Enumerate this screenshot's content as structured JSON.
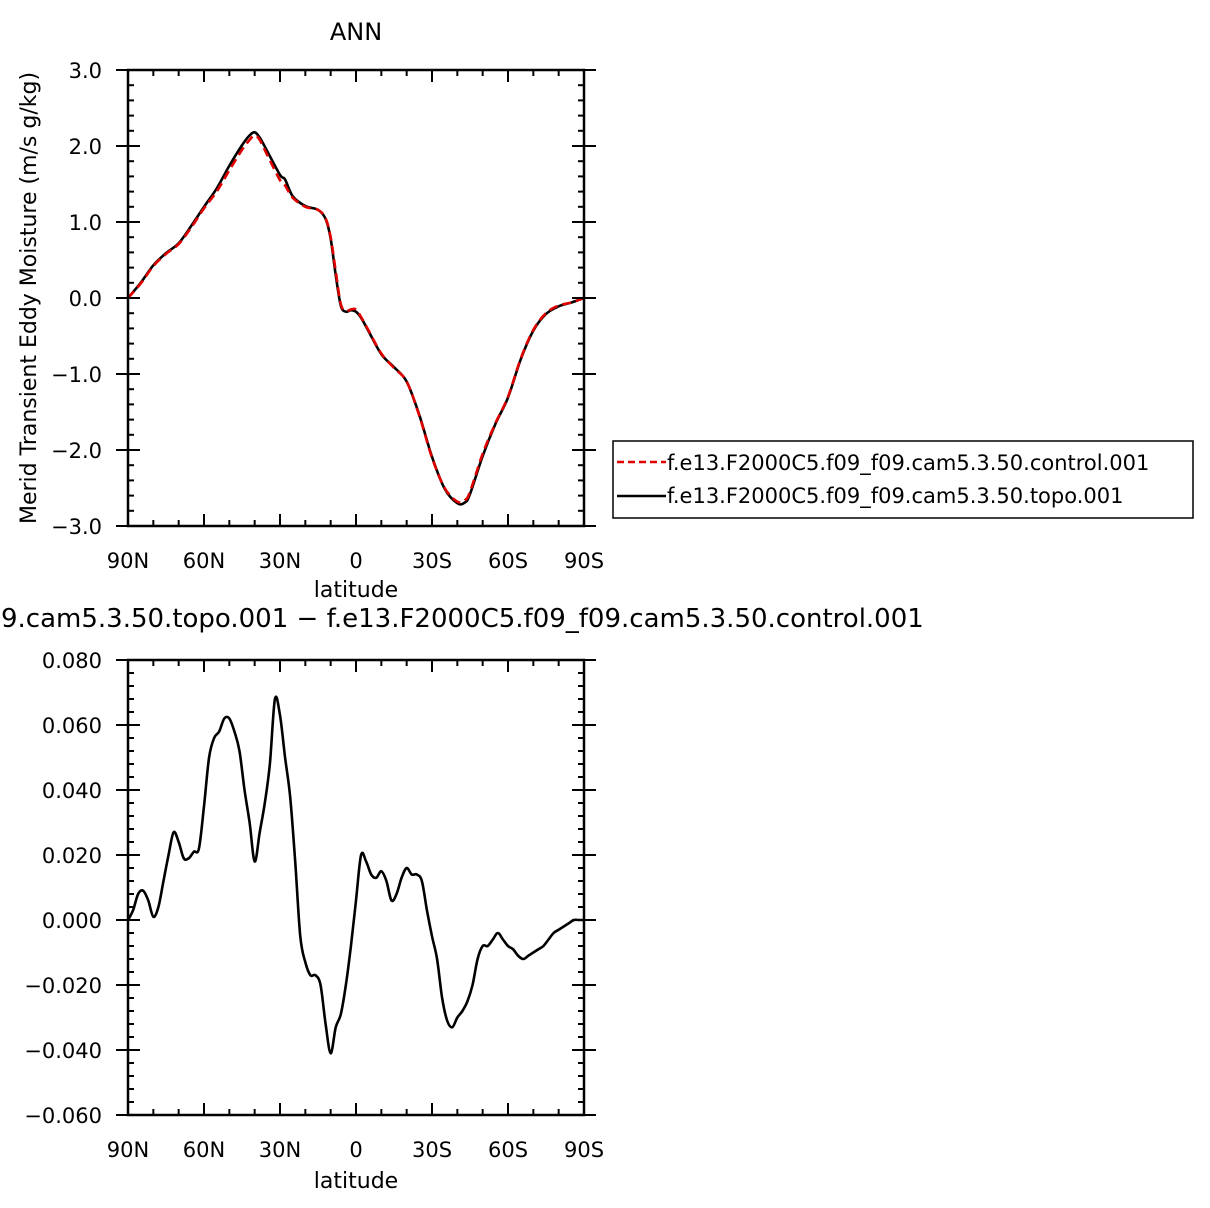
{
  "chart_data": [
    {
      "type": "line",
      "title": "ANN",
      "xlabel": "latitude",
      "ylabel": "Merid Transient Eddy Moisture (m/s g/kg)",
      "x_ticks": [
        "90N",
        "60N",
        "30N",
        "0",
        "30S",
        "60S",
        "90S"
      ],
      "x_tick_values": [
        90,
        60,
        30,
        0,
        -30,
        -60,
        -90
      ],
      "xlim": [
        90,
        -90
      ],
      "ylim": [
        -3.0,
        3.0
      ],
      "y_ticks": [
        "3.0",
        "2.0",
        "1.0",
        "0.0",
        "−1.0",
        "−2.0",
        "−3.0"
      ],
      "y_tick_values": [
        3.0,
        2.0,
        1.0,
        0.0,
        -1.0,
        -2.0,
        -3.0
      ],
      "legend_position": "right",
      "x": [
        90,
        85,
        80,
        75,
        70,
        65,
        60,
        55,
        50,
        45,
        42,
        40,
        38,
        35,
        30,
        28,
        25,
        20,
        15,
        12,
        10,
        8,
        6,
        4,
        2,
        0,
        -2,
        -5,
        -10,
        -15,
        -20,
        -25,
        -30,
        -35,
        -40,
        -43,
        -45,
        -50,
        -55,
        -60,
        -65,
        -70,
        -75,
        -80,
        -85,
        -90
      ],
      "series": [
        {
          "name": "f.e13.F2000C5.f09_f09.cam5.3.50.control.001",
          "color": "#e00000",
          "dash": "dashed",
          "values": [
            0.0,
            0.19,
            0.42,
            0.58,
            0.71,
            0.93,
            1.18,
            1.4,
            1.68,
            1.95,
            2.08,
            2.14,
            2.08,
            1.88,
            1.55,
            1.48,
            1.32,
            1.2,
            1.16,
            1.05,
            0.8,
            0.35,
            -0.08,
            -0.17,
            -0.15,
            -0.15,
            -0.25,
            -0.43,
            -0.73,
            -0.92,
            -1.1,
            -1.55,
            -2.1,
            -2.5,
            -2.68,
            -2.66,
            -2.55,
            -2.05,
            -1.65,
            -1.3,
            -0.8,
            -0.42,
            -0.2,
            -0.1,
            -0.06,
            0.0
          ]
        },
        {
          "name": "f.e13.F2000C5.f09_f09.cam5.3.50.topo.001",
          "color": "#000000",
          "dash": "solid",
          "values": [
            0.0,
            0.2,
            0.43,
            0.59,
            0.72,
            0.95,
            1.2,
            1.44,
            1.74,
            2.01,
            2.14,
            2.18,
            2.11,
            1.93,
            1.62,
            1.56,
            1.34,
            1.21,
            1.16,
            1.04,
            0.78,
            0.3,
            -0.1,
            -0.18,
            -0.16,
            -0.18,
            -0.26,
            -0.44,
            -0.74,
            -0.91,
            -1.1,
            -1.54,
            -2.09,
            -2.51,
            -2.7,
            -2.69,
            -2.58,
            -2.08,
            -1.66,
            -1.31,
            -0.81,
            -0.43,
            -0.21,
            -0.11,
            -0.06,
            0.0
          ]
        }
      ]
    },
    {
      "type": "line",
      "title": "9.cam5.3.50.topo.001 − f.e13.F2000C5.f09_f09.cam5.3.50.control.001",
      "xlabel": "latitude",
      "ylabel": "",
      "x_ticks": [
        "90N",
        "60N",
        "30N",
        "0",
        "30S",
        "60S",
        "90S"
      ],
      "x_tick_values": [
        90,
        60,
        30,
        0,
        -30,
        -60,
        -90
      ],
      "xlim": [
        90,
        -90
      ],
      "ylim": [
        -0.06,
        0.08
      ],
      "y_ticks": [
        "0.080",
        "0.060",
        "0.040",
        "0.020",
        "0.000",
        "−0.020",
        "−0.040",
        "−0.060"
      ],
      "y_tick_values": [
        0.08,
        0.06,
        0.04,
        0.02,
        0.0,
        -0.02,
        -0.04,
        -0.06
      ],
      "x": [
        90,
        88,
        86,
        84,
        82,
        80,
        78,
        76,
        74,
        72,
        70,
        68,
        66,
        64,
        62,
        60,
        58,
        56,
        54,
        52,
        50,
        48,
        46,
        44,
        42,
        40,
        38,
        36,
        34,
        32,
        30,
        28,
        26,
        24,
        22,
        20,
        18,
        16,
        14,
        12,
        10,
        8,
        6,
        4,
        2,
        0,
        -2,
        -4,
        -6,
        -8,
        -10,
        -12,
        -14,
        -16,
        -18,
        -20,
        -22,
        -24,
        -26,
        -28,
        -30,
        -32,
        -34,
        -36,
        -38,
        -40,
        -42,
        -44,
        -46,
        -48,
        -50,
        -52,
        -54,
        -56,
        -58,
        -60,
        -62,
        -64,
        -66,
        -68,
        -70,
        -72,
        -74,
        -76,
        -78,
        -80,
        -82,
        -84,
        -86,
        -88,
        -90
      ],
      "series": [
        {
          "color": "#000000",
          "dash": "solid",
          "values": [
            0.0,
            0.003,
            0.008,
            0.009,
            0.006,
            0.001,
            0.004,
            0.012,
            0.02,
            0.027,
            0.024,
            0.019,
            0.019,
            0.021,
            0.022,
            0.035,
            0.05,
            0.056,
            0.058,
            0.062,
            0.062,
            0.058,
            0.052,
            0.04,
            0.03,
            0.018,
            0.027,
            0.036,
            0.048,
            0.068,
            0.063,
            0.05,
            0.038,
            0.018,
            -0.005,
            -0.013,
            -0.017,
            -0.017,
            -0.02,
            -0.032,
            -0.041,
            -0.033,
            -0.029,
            -0.02,
            -0.008,
            0.006,
            0.02,
            0.018,
            0.014,
            0.013,
            0.015,
            0.012,
            0.006,
            0.008,
            0.013,
            0.016,
            0.014,
            0.014,
            0.012,
            0.003,
            -0.005,
            -0.012,
            -0.024,
            -0.031,
            -0.033,
            -0.03,
            -0.028,
            -0.025,
            -0.02,
            -0.012,
            -0.008,
            -0.008,
            -0.006,
            -0.004,
            -0.006,
            -0.008,
            -0.009,
            -0.011,
            -0.012,
            -0.011,
            -0.01,
            -0.009,
            -0.008,
            -0.006,
            -0.004,
            -0.003,
            -0.002,
            -0.001,
            0.0,
            0.0,
            0.0
          ]
        }
      ]
    }
  ]
}
